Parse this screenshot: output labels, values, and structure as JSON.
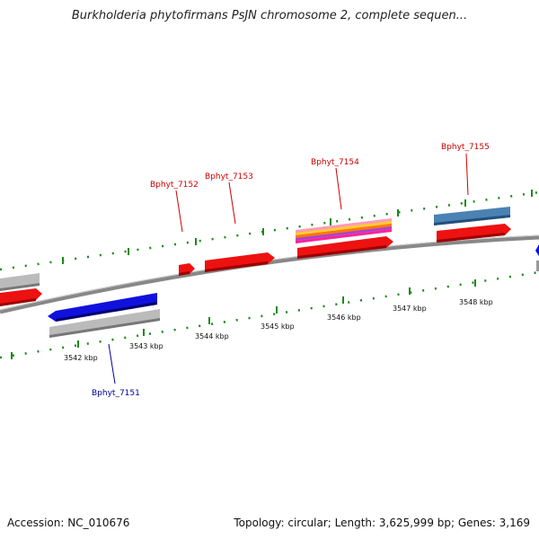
{
  "title": "Burkholderia phytofirmans PsJN chromosome 2, complete sequen...",
  "footer": {
    "accession": "Accession: NC_010676",
    "summary": "Topology: circular; Length: 3,625,999 bp; Genes: 3,169"
  },
  "colors": {
    "forward_gene": "#ee1111",
    "reverse_gene": "#1111dd",
    "grey_feature": "#bbbbbb",
    "steel_feature": "#4a82b4",
    "backbone": "#888888",
    "tick": "#1a8a1a",
    "label_forward": "#cc0000",
    "label_reverse": "#000099"
  },
  "scale": {
    "ticks_kbp": [
      "3542 kbp",
      "3543 kbp",
      "3544 kbp",
      "3545 kbp",
      "3546 kbp",
      "3547 kbp",
      "3548 kbp"
    ]
  },
  "gene_labels": [
    {
      "id": "Bphyt_7151",
      "strand": "reverse"
    },
    {
      "id": "Bphyt_7152",
      "strand": "forward"
    },
    {
      "id": "Bphyt_7153",
      "strand": "forward"
    },
    {
      "id": "Bphyt_7154",
      "strand": "forward"
    },
    {
      "id": "Bphyt_7155",
      "strand": "forward"
    }
  ]
}
